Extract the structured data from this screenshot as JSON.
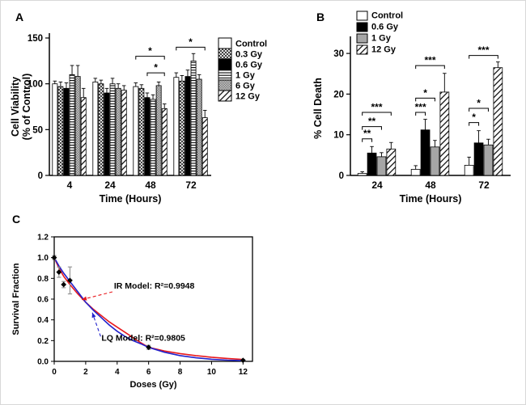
{
  "figure": {
    "background": "#ffffff",
    "panels": [
      {
        "label": "A"
      },
      {
        "label": "B"
      },
      {
        "label": "C"
      }
    ]
  },
  "colors": {
    "axis": "#000000",
    "ir_model": "#e8191d",
    "lq_model": "#2222cc",
    "error_bar_gray": "#8f8f8f",
    "bar_gray": "#a6a6a6"
  },
  "chart_data": [
    {
      "id": "A",
      "type": "bar",
      "panel": "A",
      "xlabel": "Time (Hours)",
      "ylabel_lines": [
        "Cell Viability",
        "(% of Control)"
      ],
      "ylim": [
        0,
        150
      ],
      "yticks": [
        0,
        50,
        100,
        150
      ],
      "categories": [
        "4",
        "24",
        "48",
        "72"
      ],
      "legend_position": "right",
      "series": [
        {
          "name": "Control",
          "fill": "white",
          "values": [
            100,
            102,
            97,
            107
          ],
          "errors": [
            3,
            4,
            4,
            5
          ]
        },
        {
          "name": "0.3 Gy",
          "fill": "crosshatch",
          "values": [
            97,
            100,
            95,
            103
          ],
          "errors": [
            5,
            4,
            4,
            6
          ]
        },
        {
          "name": "0.6 Gy",
          "fill": "black",
          "values": [
            95,
            90,
            85,
            108
          ],
          "errors": [
            6,
            5,
            5,
            7
          ]
        },
        {
          "name": "1 Gy",
          "fill": "hlines",
          "values": [
            110,
            100,
            83,
            125
          ],
          "errors": [
            10,
            6,
            5,
            8
          ]
        },
        {
          "name": "6 Gy",
          "fill": "graycheck",
          "values": [
            108,
            95,
            98,
            105
          ],
          "errors": [
            12,
            5,
            4,
            5
          ]
        },
        {
          "name": "12 Gy",
          "fill": "diag",
          "values": [
            85,
            93,
            73,
            63
          ],
          "errors": [
            10,
            5,
            5,
            8
          ]
        }
      ],
      "significance": [
        {
          "category": 2,
          "from": 2,
          "to": 5,
          "y": 112,
          "label": "*"
        },
        {
          "category": 2,
          "from": 0,
          "to": 5,
          "y": 130,
          "label": "*"
        },
        {
          "category": 3,
          "from": 0,
          "to": 5,
          "y": 140,
          "label": "*"
        }
      ]
    },
    {
      "id": "B",
      "type": "bar",
      "panel": "B",
      "xlabel": "Time (Hours)",
      "ylabel_lines": [
        "% Cell Death"
      ],
      "ylim": [
        0,
        33
      ],
      "yticks": [
        0,
        10,
        20,
        30
      ],
      "categories": [
        "24",
        "48",
        "72"
      ],
      "legend_position": "top-left",
      "series": [
        {
          "name": "Control",
          "fill": "white",
          "values": [
            0.5,
            1.5,
            2.5
          ],
          "errors": [
            0.4,
            0.9,
            2.0
          ]
        },
        {
          "name": "0.6 Gy",
          "fill": "black",
          "values": [
            5.5,
            11.2,
            8.0
          ],
          "errors": [
            1.6,
            2.6,
            3.0
          ]
        },
        {
          "name": "1 Gy",
          "fill": "gray",
          "values": [
            4.6,
            7.0,
            7.5
          ],
          "errors": [
            1.0,
            1.6,
            1.4
          ]
        },
        {
          "name": "12 Gy",
          "fill": "diag",
          "values": [
            6.5,
            20.5,
            26.5
          ],
          "errors": [
            1.6,
            4.6,
            1.4
          ]
        }
      ],
      "significance": [
        {
          "category": 0,
          "from": 0,
          "to": 1,
          "y": 9,
          "label": "**"
        },
        {
          "category": 0,
          "from": 0,
          "to": 2,
          "y": 12,
          "label": "**"
        },
        {
          "category": 0,
          "from": 0,
          "to": 3,
          "y": 15.5,
          "label": "***"
        },
        {
          "category": 1,
          "from": 0,
          "to": 1,
          "y": 15.5,
          "label": "***"
        },
        {
          "category": 1,
          "from": 0,
          "to": 2,
          "y": 19,
          "label": "*"
        },
        {
          "category": 1,
          "from": 0,
          "to": 3,
          "y": 27,
          "label": "***"
        },
        {
          "category": 2,
          "from": 0,
          "to": 1,
          "y": 13,
          "label": "*"
        },
        {
          "category": 2,
          "from": 0,
          "to": 2,
          "y": 16.5,
          "label": "*"
        },
        {
          "category": 2,
          "from": 0,
          "to": 3,
          "y": 29.5,
          "label": "***"
        }
      ]
    },
    {
      "id": "C",
      "type": "line",
      "panel": "C",
      "xlabel": "Doses (Gy)",
      "ylabel": "Survival Fraction",
      "xlim": [
        0,
        12.6
      ],
      "ylim": [
        0,
        1.2
      ],
      "xticks": [
        0,
        2,
        4,
        6,
        8,
        10,
        12
      ],
      "xtick_labels": [
        "0",
        "2",
        "4",
        "6",
        "8",
        "10",
        "12"
      ],
      "yticks": [
        0,
        0.2,
        0.4,
        0.6,
        0.8,
        1.0,
        1.2
      ],
      "ytick_labels": [
        "0.0",
        "0.2",
        "0.4",
        "0.6",
        "0.8",
        "1.0",
        "1.2"
      ],
      "points": {
        "x": [
          0,
          0.3,
          0.6,
          1,
          6,
          12
        ],
        "y": [
          1.0,
          0.86,
          0.74,
          0.78,
          0.135,
          0.01
        ],
        "yerr": [
          0.02,
          0.05,
          0.03,
          0.13,
          0.02,
          0.008
        ]
      },
      "series": [
        {
          "name": "IR Model",
          "color_key": "ir_model",
          "x": [
            0,
            0.3,
            0.6,
            1,
            1.5,
            2,
            2.5,
            3,
            3.5,
            4,
            4.5,
            5,
            5.5,
            6,
            7,
            8,
            9,
            10,
            11,
            12
          ],
          "y": [
            1.0,
            0.9,
            0.82,
            0.74,
            0.65,
            0.57,
            0.5,
            0.44,
            0.38,
            0.33,
            0.28,
            0.23,
            0.18,
            0.135,
            0.1,
            0.075,
            0.055,
            0.04,
            0.028,
            0.018
          ]
        },
        {
          "name": "LQ Model",
          "color_key": "lq_model",
          "x": [
            0,
            0.3,
            0.6,
            1,
            1.5,
            2,
            2.5,
            3,
            3.5,
            4,
            4.5,
            5,
            5.5,
            6,
            7,
            8,
            9,
            10,
            11,
            12
          ],
          "y": [
            1.0,
            0.92,
            0.85,
            0.77,
            0.67,
            0.57,
            0.49,
            0.42,
            0.35,
            0.29,
            0.24,
            0.2,
            0.17,
            0.135,
            0.088,
            0.055,
            0.034,
            0.02,
            0.012,
            0.007
          ]
        }
      ],
      "annotations": [
        {
          "text": "IR Model: R²=0.9948",
          "color_key": "ir_model",
          "text_x": 3.8,
          "text_y": 0.7,
          "arrow_from_x": 3.7,
          "arrow_from_y": 0.67,
          "arrow_to_x": 1.75,
          "arrow_to_y": 0.595
        },
        {
          "text": "LQ Model: R²=0.9805",
          "color_key": "lq_model",
          "text_x": 3.0,
          "text_y": 0.2,
          "arrow_from_x": 2.95,
          "arrow_from_y": 0.24,
          "arrow_to_x": 2.42,
          "arrow_to_y": 0.47
        }
      ]
    }
  ]
}
